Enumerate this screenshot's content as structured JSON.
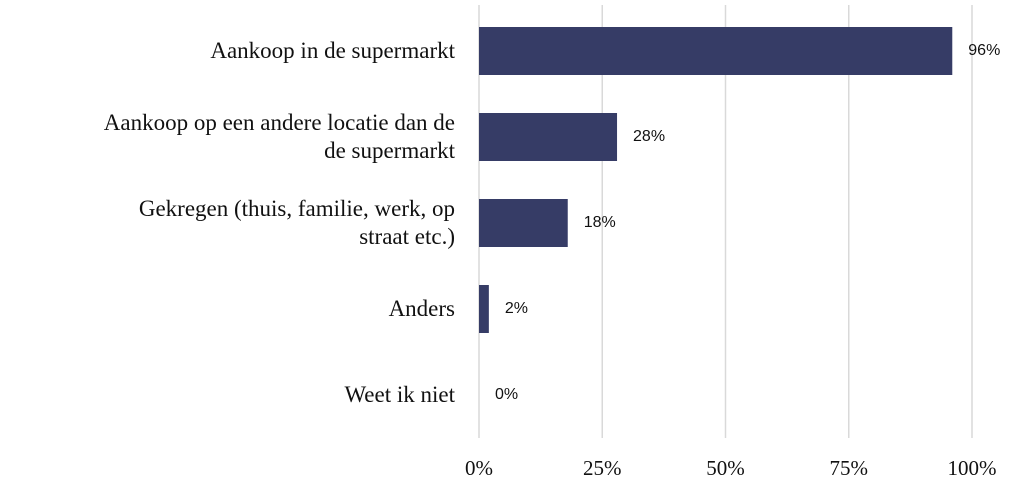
{
  "chart_data": {
    "type": "bar",
    "orientation": "horizontal",
    "categories": [
      "Aankoop in de supermarkt",
      "Aankoop op een andere locatie dan de\nde supermarkt",
      "Gekregen (thuis, familie, werk, op\nstraat etc.)",
      "Anders",
      "Weet ik niet"
    ],
    "values": [
      96,
      28,
      18,
      2,
      0
    ],
    "value_labels": [
      "96%",
      "28%",
      "18%",
      "2%",
      "0%"
    ],
    "color": "#363c66",
    "xlim": [
      0,
      100
    ],
    "xticks": [
      {
        "value": 0,
        "label": "0%"
      },
      {
        "value": 25,
        "label": "25%"
      },
      {
        "value": 50,
        "label": "50%"
      },
      {
        "value": 75,
        "label": "75%"
      },
      {
        "value": 100,
        "label": "100%"
      }
    ],
    "grid": true
  }
}
